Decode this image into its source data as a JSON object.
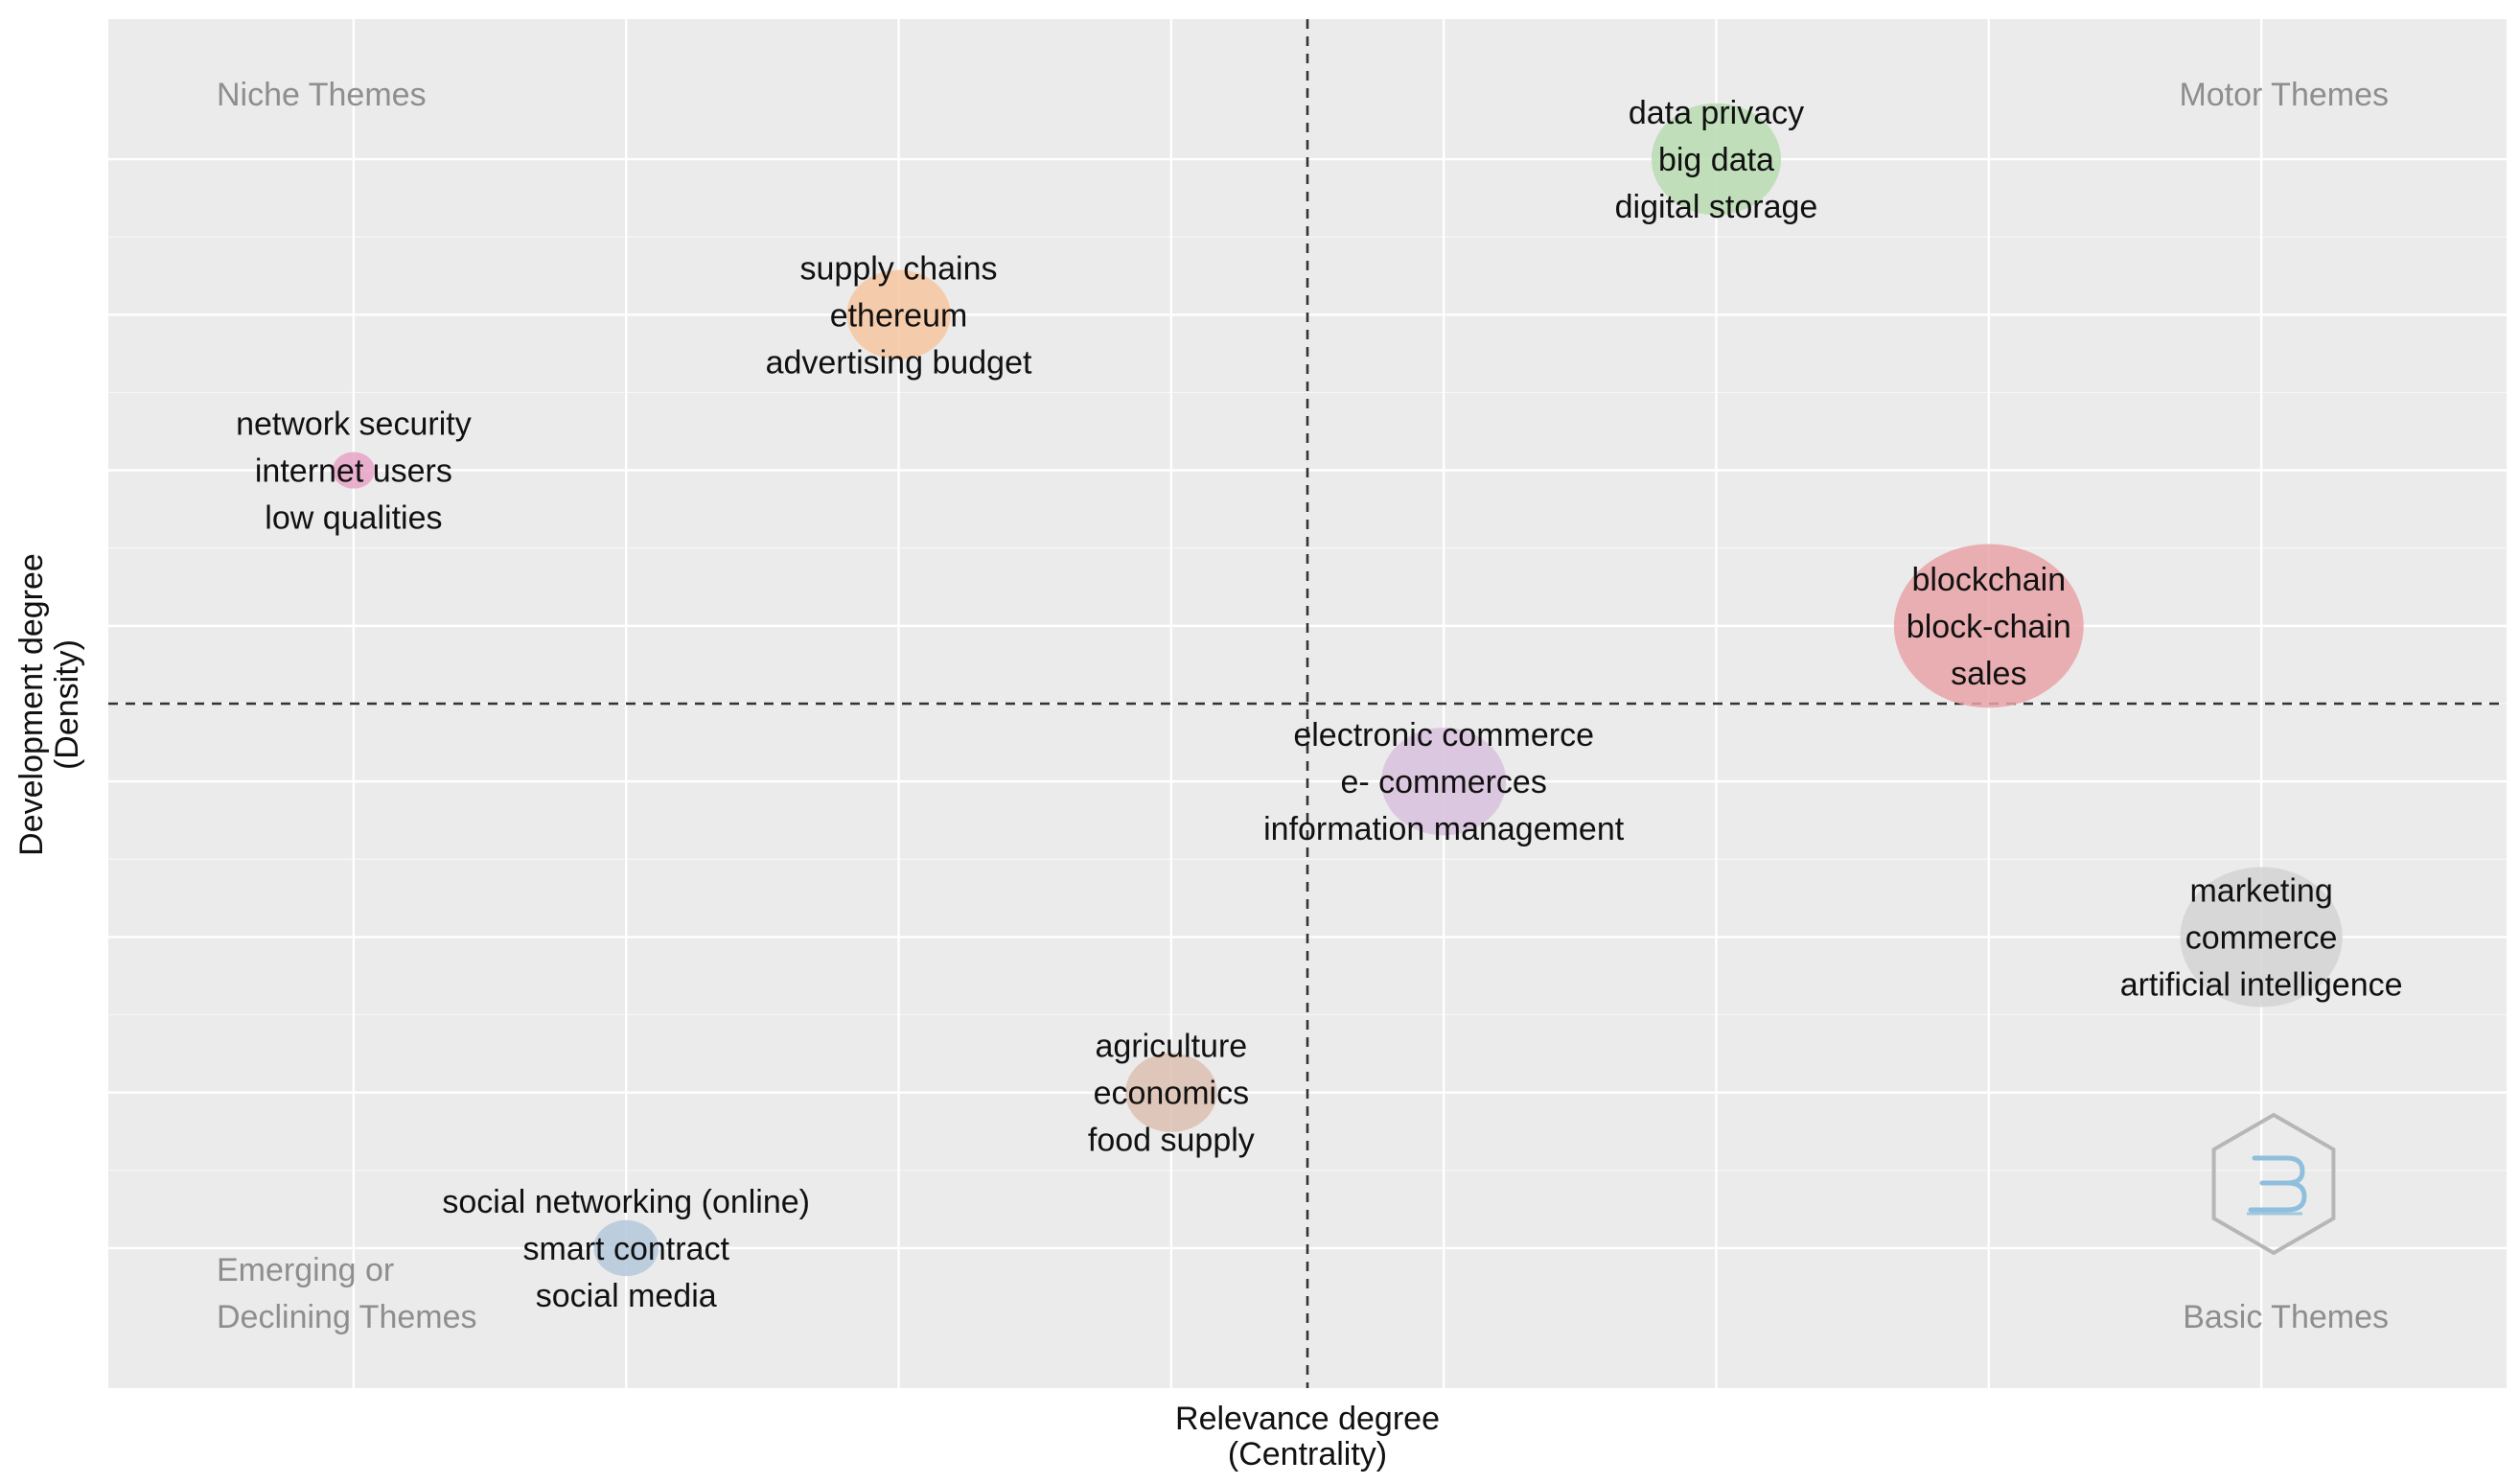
{
  "chart_data": {
    "type": "scatter",
    "title": "",
    "xlabel": [
      "Relevance degree",
      "(Centrality)"
    ],
    "ylabel": [
      "Development degree",
      "(Density)"
    ],
    "xlim": [
      0,
      8.8
    ],
    "ylim": [
      0,
      8.8
    ],
    "x_grid": [
      0.9,
      1.9,
      2.9,
      3.9,
      4.9,
      5.9,
      6.9,
      7.9
    ],
    "y_grid": [
      0.9,
      1.9,
      2.9,
      3.9,
      4.9,
      5.9,
      6.9,
      7.9
    ],
    "ref_x": 4.4,
    "ref_y": 4.4,
    "quadrants": {
      "top_left": [
        "Niche Themes"
      ],
      "top_right": [
        "Motor Themes"
      ],
      "bottom_left": [
        "Emerging or",
        "Declining Themes"
      ],
      "bottom_right": [
        "Basic Themes"
      ]
    },
    "clusters": [
      {
        "labels": [
          "data privacy",
          "big data",
          "digital storage"
        ],
        "x": 5.9,
        "y": 7.9,
        "size": 1.4,
        "color": "#b9dcb2"
      },
      {
        "labels": [
          "supply chains",
          "ethereum",
          "advertising budget"
        ],
        "x": 2.9,
        "y": 6.9,
        "size": 0.9,
        "color": "#f6c7a0"
      },
      {
        "labels": [
          "network security",
          "internet users",
          "low qualities"
        ],
        "x": 0.9,
        "y": 5.9,
        "size": 0.15,
        "color": "#e8a4c8"
      },
      {
        "labels": [
          "blockchain",
          "block-chain",
          "sales"
        ],
        "x": 6.9,
        "y": 4.9,
        "size": 3.0,
        "color": "#e9a3a8"
      },
      {
        "labels": [
          "electronic commerce",
          "e- commerces",
          "information management"
        ],
        "x": 4.9,
        "y": 3.9,
        "size": 1.3,
        "color": "#d9c1de"
      },
      {
        "labels": [
          "marketing",
          "commerce",
          "artificial intelligence"
        ],
        "x": 7.9,
        "y": 2.9,
        "size": 2.2,
        "color": "#d3d3d3"
      },
      {
        "labels": [
          "agriculture",
          "economics",
          "food supply"
        ],
        "x": 3.9,
        "y": 1.9,
        "size": 0.7,
        "color": "#ddc0b2"
      },
      {
        "labels": [
          "social networking (online)",
          "smart contract",
          "social media"
        ],
        "x": 1.9,
        "y": 0.9,
        "size": 0.35,
        "color": "#b4c8dc"
      }
    ]
  },
  "colors": {
    "panel": "#ebebeb",
    "grid": "#ffffff",
    "reference_line": "#333333",
    "watermark": "#b6b6b6",
    "watermark_accent": "#8fbfdc"
  },
  "watermark_icon": "bibliometrix-logo-icon"
}
